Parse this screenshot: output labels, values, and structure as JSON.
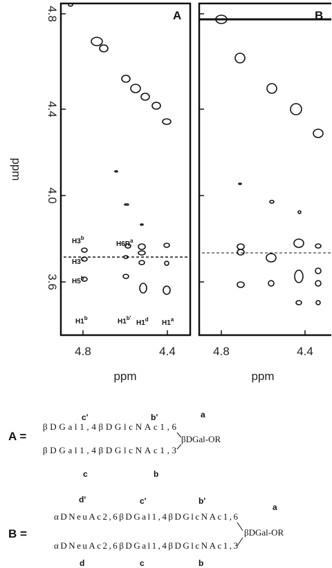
{
  "figure": {
    "ylabel": "ppm",
    "yticks": [
      "4.8",
      "4.4",
      "4.0",
      "3.6"
    ],
    "panels": [
      {
        "label": "A",
        "xticks": [
          "4.8",
          "4.4"
        ],
        "xlabel": "ppm",
        "annotations": [
          {
            "text": "H3",
            "sup": "b"
          },
          {
            "text": "H6R",
            "sup": "a"
          },
          {
            "text": "H3",
            "sup": "c"
          },
          {
            "text": "H5",
            "sup": "b"
          },
          {
            "text": "H1",
            "sup": "b"
          },
          {
            "text": "H1",
            "sup": "b'"
          },
          {
            "text": "H1",
            "sup": "d"
          },
          {
            "text": "H1",
            "sup": "a"
          }
        ]
      },
      {
        "label": "B",
        "xticks": [
          "4.8",
          "4.4"
        ],
        "xlabel": "ppm"
      }
    ]
  },
  "structures": [
    {
      "label": "A =",
      "upper": {
        "text": "βDGal1,4βDGlcNAc1,6",
        "letters": [
          "c'",
          "b'"
        ]
      },
      "lower": {
        "text": "βDGal1,4βDGlcNAc1,3",
        "letters": [
          "c",
          "b"
        ]
      },
      "core": "βDGal-OR",
      "core_letter": "a"
    },
    {
      "label": "B =",
      "upper": {
        "text": "αDNeuAc2,6βDGal1,4βDGlcNAc1,6",
        "letters": [
          "d'",
          "c'",
          "b'"
        ]
      },
      "lower": {
        "text": "αDNeuAc2,6βDGal1,4βDGlcNAc1,3",
        "letters": [
          "d",
          "c",
          "b"
        ]
      },
      "core": "βDGal-OR",
      "core_letter": "a"
    }
  ]
}
